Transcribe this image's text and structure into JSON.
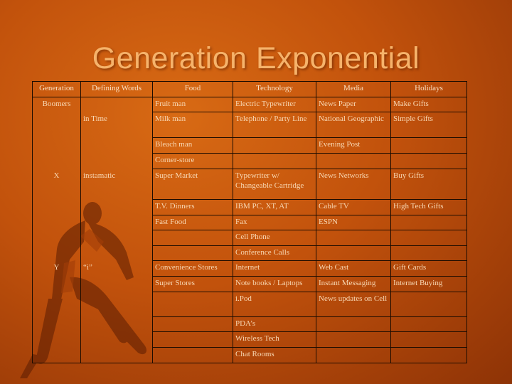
{
  "slide": {
    "title": "Generation Exponential"
  },
  "table": {
    "headers": [
      "Generation",
      "Defining Words",
      "Food",
      "Technology",
      "Media",
      "Holidays"
    ],
    "rows": [
      [
        "Boomers",
        "",
        "Fruit man",
        "Electric Typewriter",
        "News Paper",
        "Make Gifts"
      ],
      [
        "",
        "in Time",
        "Milk man",
        "Telephone / Party Line",
        "National Geographic",
        "Simple Gifts"
      ],
      [
        "",
        "",
        "Bleach man",
        "",
        "Evening Post",
        ""
      ],
      [
        "",
        "",
        "Corner-store",
        "",
        "",
        ""
      ],
      [
        "X",
        "instamatic",
        "Super Market",
        "Typewriter w/ Changeable Cartridge",
        "News Networks",
        "Buy Gifts"
      ],
      [
        "",
        "",
        "T.V. Dinners",
        "IBM PC, XT, AT",
        "Cable TV",
        "High Tech Gifts"
      ],
      [
        "",
        "",
        "Fast Food",
        "Fax",
        "ESPN",
        ""
      ],
      [
        "",
        "",
        "",
        "Cell Phone",
        "",
        ""
      ],
      [
        "",
        "",
        "",
        "Conference Calls",
        "",
        ""
      ],
      [
        "Y",
        "“i”",
        "Convenience Stores",
        "Internet",
        "Web Cast",
        "Gift Cards"
      ],
      [
        "",
        "",
        "Super Stores",
        "Note books / Laptops",
        "Instant Messaging",
        "Internet Buying"
      ],
      [
        "",
        "",
        "",
        "i.Pod",
        "News updates on Cell",
        ""
      ],
      [
        "",
        "",
        "",
        "PDA’s",
        "",
        ""
      ],
      [
        "",
        "",
        "",
        "Wireless Tech",
        "",
        ""
      ],
      [
        "",
        "",
        "",
        "Chat Rooms",
        "",
        ""
      ]
    ]
  },
  "colors": {
    "background": "#c2520c",
    "title": "#f6b36b",
    "text": "#f8d8b4",
    "grid": "#1d0c00"
  },
  "decor": {
    "image": "runner-silhouette"
  }
}
